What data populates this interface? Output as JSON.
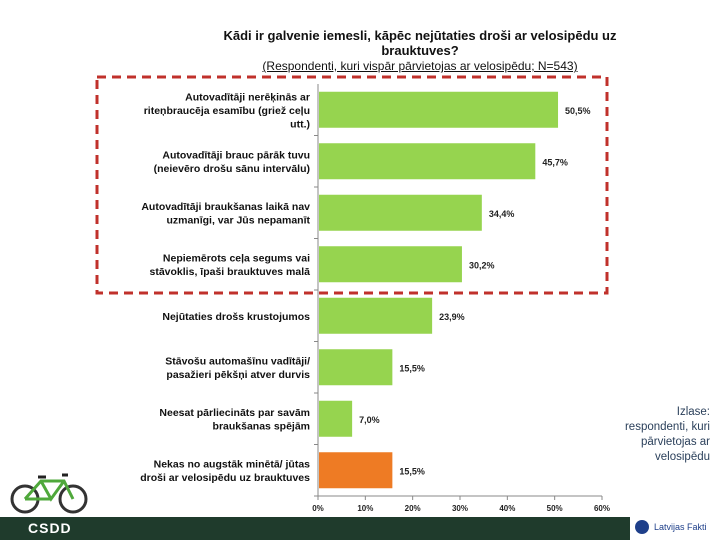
{
  "header": {
    "title_line1": "Kādi ir galvenie iemesli, kāpēc nejūtaties droši ar velosipēdu uz",
    "title_line2": "brauktuves?",
    "subtitle": "(Respondenti, kuri vispār pārvietojas ar velosipēdu; N=543)"
  },
  "side_note": "Izlase: respondenti, kuri pārvietojas ar velosipēdu",
  "footer": {
    "brand_left": "CSDD",
    "brand_right": "Latvijas Fakti"
  },
  "colors": {
    "bar": "#96d44f",
    "bar_highlight": "#ee7b24",
    "dashed_box": "#c0312b",
    "footer": "#1f3b2c"
  },
  "chart_data": {
    "type": "bar",
    "orientation": "horizontal",
    "categories": [
      [
        "Autovadītāji nerēķinās ar",
        "riteņbraucēja esamību (griež ceļu",
        "utt.)"
      ],
      [
        "Autovadītāji brauc pārāk tuvu",
        "(neievēro drošu sānu intervālu)"
      ],
      [
        "Autovadītāji braukšanas laikā nav",
        "uzmanīgi, var Jūs nepamanīt"
      ],
      [
        "Nepiemērots ceļa segums vai",
        "stāvoklis, īpaši brauktuves malā"
      ],
      [
        "Nejūtaties drošs krustojumos"
      ],
      [
        "Stāvošu automašīnu vadītāji/",
        "pasažieri pēkšņi atver durvis"
      ],
      [
        "Neesat pārliecināts par savām",
        "braukšanas spējām"
      ],
      [
        "Nekas no augstāk minētā/ jūtas",
        "droši ar velosipēdu uz brauktuves"
      ]
    ],
    "values": [
      50.5,
      45.7,
      34.4,
      30.2,
      23.9,
      15.5,
      7.0,
      15.5
    ],
    "value_labels": [
      "50,5%",
      "45,7%",
      "34,4%",
      "30,2%",
      "23,9%",
      "15,5%",
      "7,0%",
      "15,5%"
    ],
    "highlight_index": 7,
    "xlim": [
      0,
      60
    ],
    "x_ticks": [
      "0%",
      "10%",
      "20%",
      "30%",
      "40%",
      "50%",
      "60%"
    ],
    "dashed_group": [
      0,
      3
    ]
  }
}
